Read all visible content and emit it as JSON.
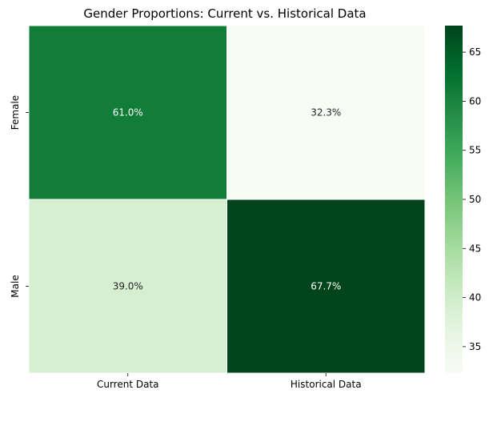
{
  "chart_data": {
    "type": "heatmap",
    "title": "Gender Proportions: Current vs. Historical Data",
    "xlabel": "",
    "ylabel": "",
    "columns": [
      "Current Data",
      "Historical Data"
    ],
    "rows": [
      "Female",
      "Male"
    ],
    "values": [
      [
        61.0,
        32.3
      ],
      [
        39.0,
        67.7
      ]
    ],
    "cell_labels": [
      [
        "61.0%",
        "32.3%"
      ],
      [
        "39.0%",
        "67.7%"
      ]
    ],
    "colormap": "Greens",
    "colorbar": {
      "range": [
        32.3,
        67.7
      ],
      "ticks": [
        35,
        40,
        45,
        50,
        55,
        60,
        65
      ]
    },
    "colors": {
      "low": "#f7fcf5",
      "high": "#00441b",
      "text_on_light": "#262626",
      "text_on_dark": "#ffffff"
    }
  }
}
